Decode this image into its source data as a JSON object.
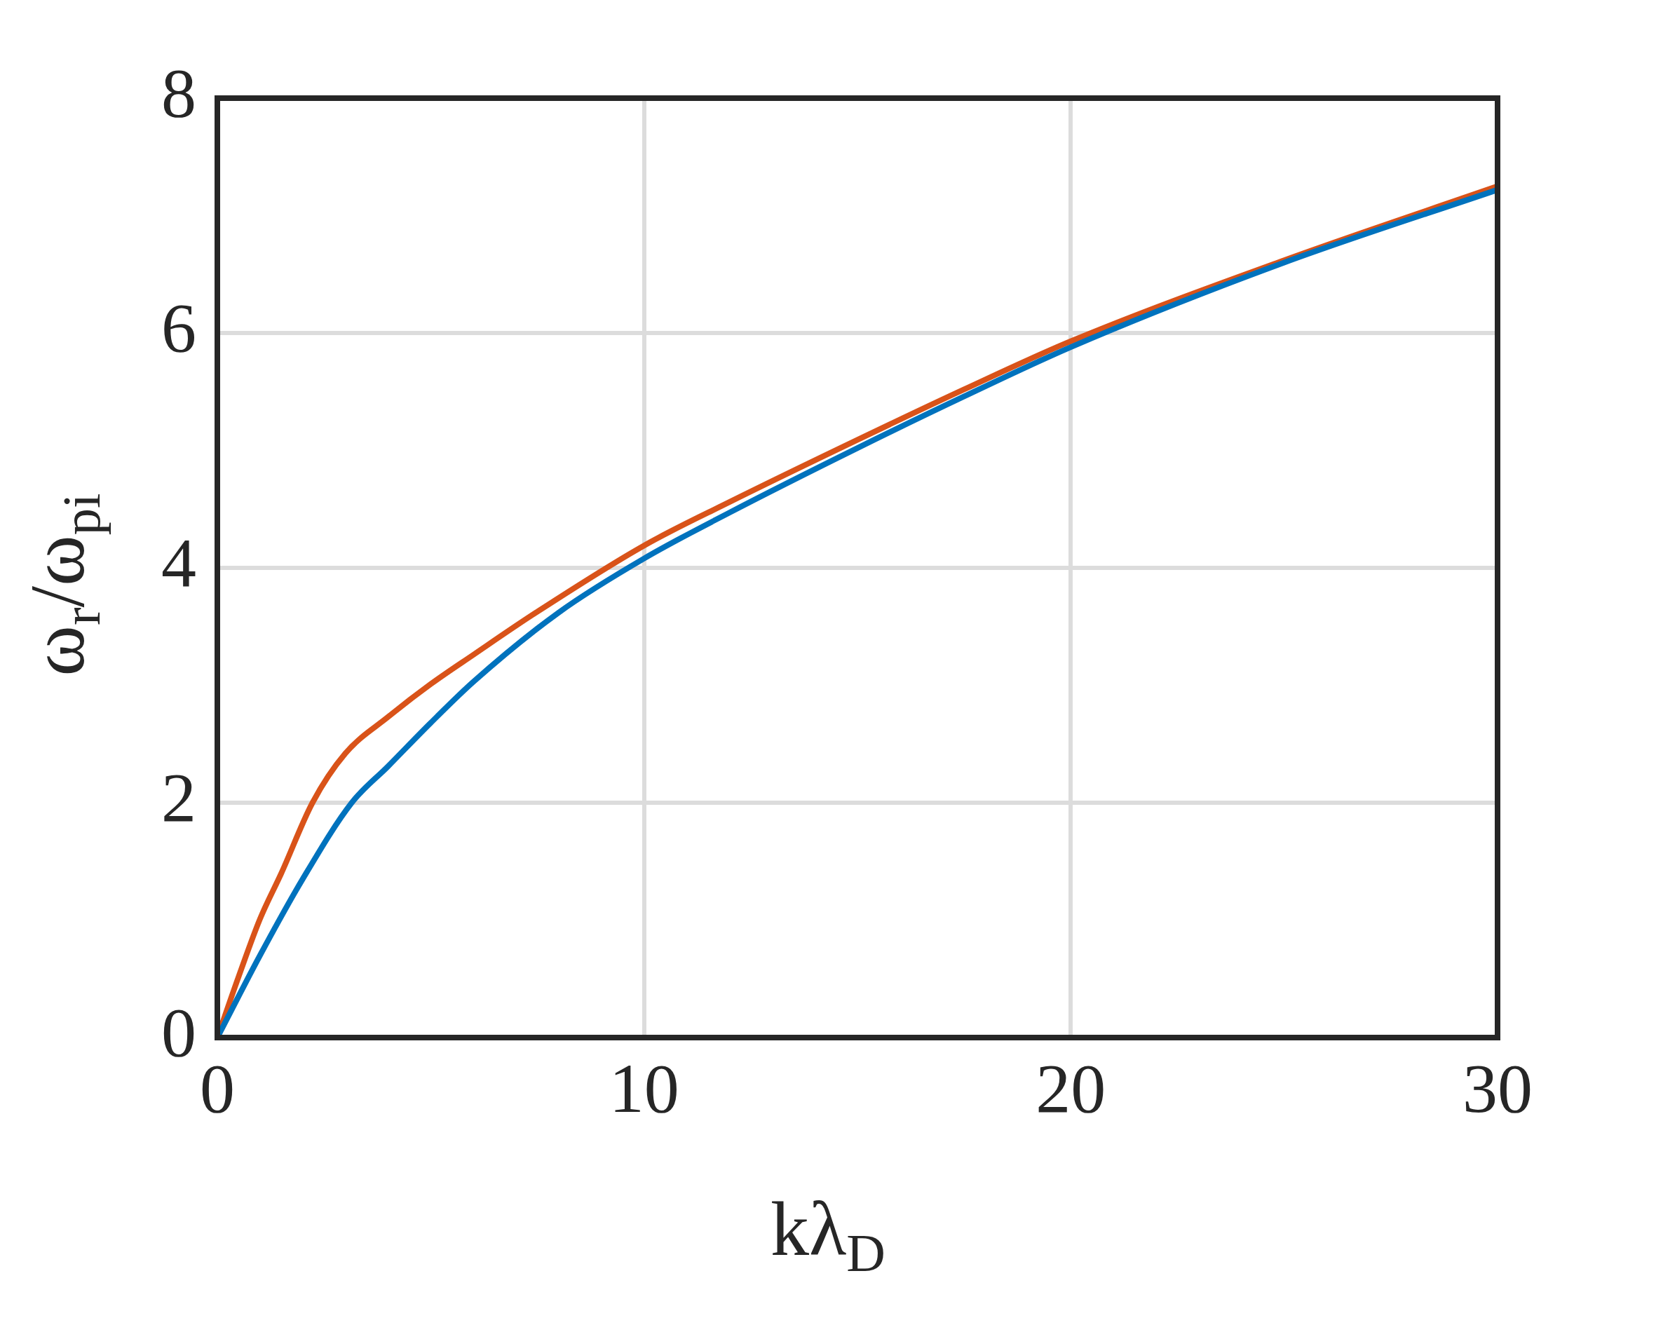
{
  "chart_data": {
    "type": "line",
    "xlabel": "kλ$_{D}$",
    "ylabel": "ω$_{r}$/ω$_{pi}$",
    "xlim": [
      0,
      30
    ],
    "ylim": [
      0,
      8
    ],
    "xticks": [
      0,
      10,
      20,
      30
    ],
    "yticks": [
      0,
      2,
      4,
      6,
      8
    ],
    "grid": true,
    "legend": false,
    "marker": "none",
    "line_style": "solid",
    "series": [
      {
        "color": "#0072bd",
        "x": [
          0,
          1,
          2,
          3.15,
          4,
          5,
          6,
          8,
          10,
          12,
          15,
          17.5,
          20,
          25,
          30
        ],
        "values": [
          0,
          0.7,
          1.35,
          2,
          2.31,
          2.68,
          3.03,
          3.62,
          4.08,
          4.47,
          5.02,
          5.46,
          5.88,
          6.6,
          7.22
        ]
      },
      {
        "color": "#d95319",
        "x": [
          0,
          0.5,
          1,
          1.5,
          2.23,
          3,
          4,
          5,
          6,
          7.47,
          10,
          12,
          15,
          17.5,
          20,
          25,
          30
        ],
        "values": [
          0,
          0.52,
          1.01,
          1.4,
          2,
          2.42,
          2.73,
          3.01,
          3.26,
          3.62,
          4.19,
          4.56,
          5.09,
          5.52,
          5.93,
          6.62,
          7.25
        ]
      }
    ]
  }
}
